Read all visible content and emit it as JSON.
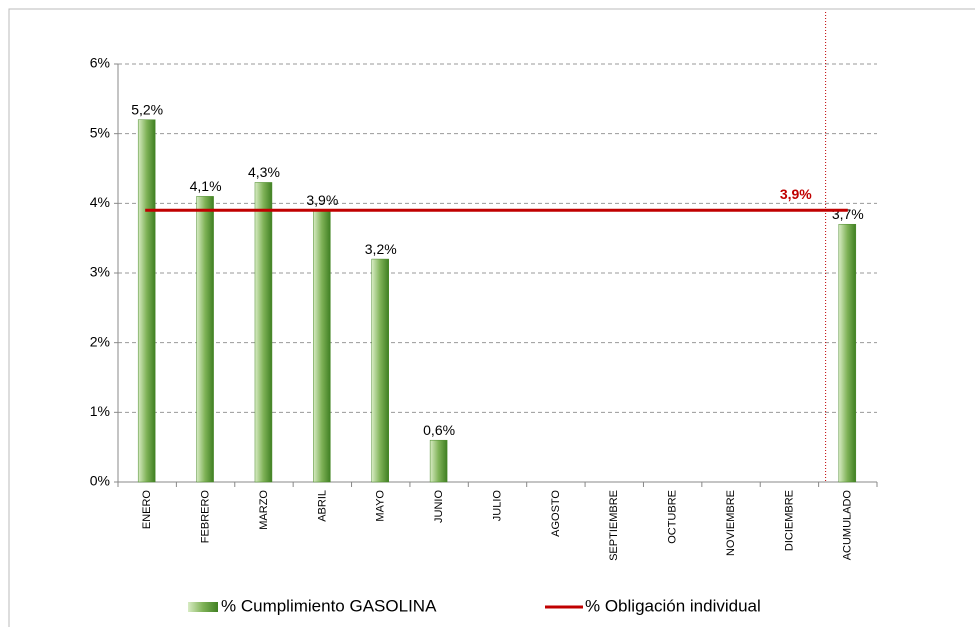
{
  "chart_data": {
    "type": "bar",
    "categories": [
      "ENERO",
      "FEBRERO",
      "MARZO",
      "ABRIL",
      "MAYO",
      "JUNIO",
      "JULIO",
      "AGOSTO",
      "SEPTIEMBRE",
      "OCTUBRE",
      "NOVIEMBRE",
      "DICIEMBRE",
      "ACUMULADO"
    ],
    "series": [
      {
        "name": "% Cumplimiento GASOLINA",
        "type": "bar",
        "color": "#4a8a2a",
        "values": [
          5.2,
          4.1,
          4.3,
          3.9,
          3.2,
          0.6,
          null,
          null,
          null,
          null,
          null,
          null,
          3.7
        ],
        "value_labels": [
          "5,2%",
          "4,1%",
          "4,3%",
          "3,9%",
          "3,2%",
          "0,6%",
          null,
          null,
          null,
          null,
          null,
          null,
          "3,7%"
        ]
      },
      {
        "name": "% Obligación individual",
        "type": "line",
        "color": "#c00000",
        "values": [
          3.9,
          3.9,
          3.9,
          3.9,
          3.9,
          3.9,
          3.9,
          3.9,
          3.9,
          3.9,
          3.9,
          3.9,
          3.9
        ],
        "value_labels": [
          null,
          null,
          null,
          null,
          null,
          null,
          null,
          null,
          null,
          null,
          null,
          null,
          "3,9%"
        ]
      }
    ],
    "ylim": [
      0,
      6
    ],
    "yticks": [
      {
        "value": 0,
        "label": "0%"
      },
      {
        "value": 1,
        "label": "1%"
      },
      {
        "value": 2,
        "label": "2%"
      },
      {
        "value": 3,
        "label": "3%"
      },
      {
        "value": 4,
        "label": "4%"
      },
      {
        "value": 5,
        "label": "5%"
      },
      {
        "value": 6,
        "label": "6%"
      }
    ],
    "grid": true,
    "legend": "bottom"
  }
}
